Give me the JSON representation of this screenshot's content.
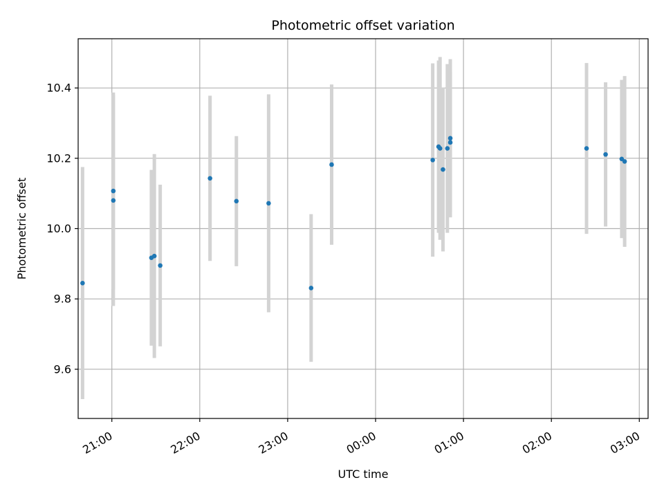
{
  "chart_data": {
    "type": "scatter",
    "title": "Photometric offset variation",
    "xlabel": "UTC time",
    "ylabel": "Photometric offset",
    "x_unit": "UTC time of day, date rolls over after 00:00",
    "xlim": [
      "20:37",
      "03:06"
    ],
    "ylim": [
      9.46,
      10.54
    ],
    "x_ticks": [
      "21:00",
      "22:00",
      "23:00",
      "00:00",
      "01:00",
      "02:00",
      "03:00"
    ],
    "y_ticks": [
      9.6,
      9.8,
      10.0,
      10.2,
      10.4
    ],
    "y_tick_labels": [
      "9.6",
      "9.8",
      "10.0",
      "10.2",
      "10.4"
    ],
    "grid": true,
    "colors": {
      "points": "#1f77b4",
      "errorbars": "#d3d3d3",
      "grid": "#b0b0b0"
    },
    "series": [
      {
        "points": [
          {
            "x": "20:40",
            "y": 9.845,
            "yerr": 0.33
          },
          {
            "x": "21:01",
            "y": 10.107,
            "yerr": 0.28
          },
          {
            "x": "21:01",
            "y": 10.08,
            "yerr": 0.3
          },
          {
            "x": "21:27",
            "y": 9.917,
            "yerr": 0.25
          },
          {
            "x": "21:29",
            "y": 9.922,
            "yerr": 0.29
          },
          {
            "x": "21:33",
            "y": 9.895,
            "yerr": 0.23
          },
          {
            "x": "22:07",
            "y": 10.143,
            "yerr": 0.235
          },
          {
            "x": "22:25",
            "y": 10.078,
            "yerr": 0.185
          },
          {
            "x": "22:47",
            "y": 10.072,
            "yerr": 0.31
          },
          {
            "x": "23:16",
            "y": 9.831,
            "yerr": 0.21
          },
          {
            "x": "23:30",
            "y": 10.182,
            "yerr": 0.228
          },
          {
            "x": "00:39",
            "y": 10.195,
            "yerr": 0.275
          },
          {
            "x": "00:43",
            "y": 10.233,
            "yerr": 0.245
          },
          {
            "x": "00:44",
            "y": 10.228,
            "yerr": 0.26
          },
          {
            "x": "00:46",
            "y": 10.168,
            "yerr": 0.233
          },
          {
            "x": "00:49",
            "y": 10.228,
            "yerr": 0.24
          },
          {
            "x": "00:51",
            "y": 10.257,
            "yerr": 0.225
          },
          {
            "x": "00:51",
            "y": 10.245,
            "yerr": 0.2
          },
          {
            "x": "02:24",
            "y": 10.228,
            "yerr": 0.243
          },
          {
            "x": "02:37",
            "y": 10.211,
            "yerr": 0.205
          },
          {
            "x": "02:48",
            "y": 10.198,
            "yerr": 0.225
          },
          {
            "x": "02:50",
            "y": 10.191,
            "yerr": 0.243
          }
        ]
      }
    ]
  }
}
